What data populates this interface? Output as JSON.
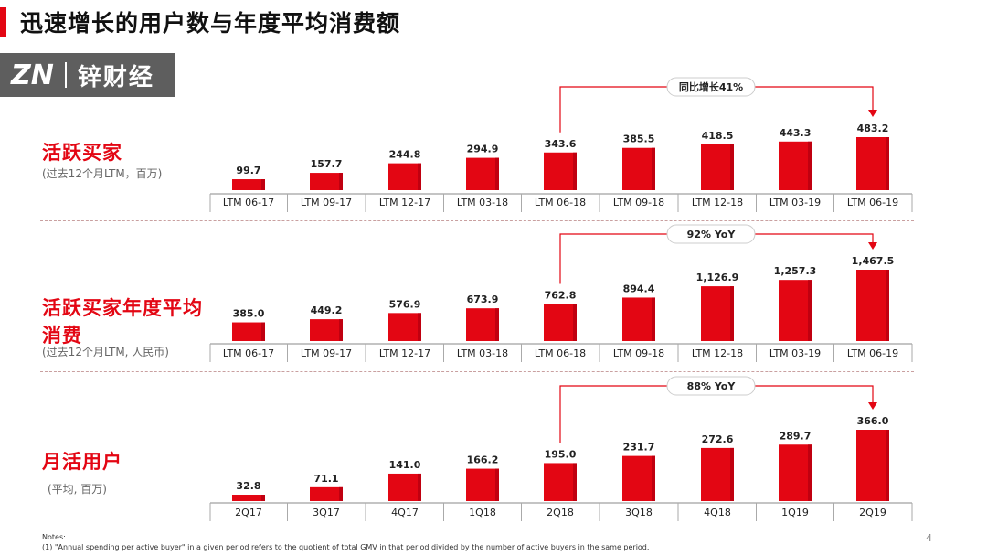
{
  "page_title": "迅速增长的用户数与年度平均消费额",
  "logo": {
    "mark": "ZN",
    "name": "锌财经"
  },
  "sections": [
    {
      "title": "活跃买家",
      "subtitle": "(过去12个月LTM，百万)"
    },
    {
      "title": "活跃买家年度平均消费",
      "subtitle": "(过去12个月LTM, 人民币)"
    },
    {
      "title": "月活用户",
      "subtitle": "(平均, 百万)"
    }
  ],
  "notes": {
    "label": "Notes:",
    "line1": "(1)      \"Annual spending per active buyer\" in a given period refers to the quotient of total GMV in that period divided by the number of active buyers in the same period."
  },
  "page_number": "4",
  "colors": {
    "bar": "#e30613",
    "bar_dark": "#c00010",
    "accent": "#e30613"
  },
  "chart_data": [
    {
      "type": "bar",
      "categories": [
        "LTM 06-17",
        "LTM 09-17",
        "LTM 12-17",
        "LTM 03-18",
        "LTM 06-18",
        "LTM 09-18",
        "LTM 12-18",
        "LTM 03-19",
        "LTM 06-19"
      ],
      "values": [
        99.7,
        157.7,
        244.8,
        294.9,
        343.6,
        385.5,
        418.5,
        443.3,
        483.2
      ],
      "value_labels": [
        "99.7",
        "157.7",
        "244.8",
        "294.9",
        "343.6",
        "385.5",
        "418.5",
        "443.3",
        "483.2"
      ],
      "annotation": {
        "text": "同比增长41%",
        "from_index": 4,
        "to_index": 8
      },
      "ylim": [
        0,
        483.2
      ]
    },
    {
      "type": "bar",
      "categories": [
        "LTM 06-17",
        "LTM 09-17",
        "LTM 12-17",
        "LTM 03-18",
        "LTM 06-18",
        "LTM 09-18",
        "LTM 12-18",
        "LTM 03-19",
        "LTM 06-19"
      ],
      "values": [
        385.0,
        449.2,
        576.9,
        673.9,
        762.8,
        894.4,
        1126.9,
        1257.3,
        1467.5
      ],
      "value_labels": [
        "385.0",
        "449.2",
        "576.9",
        "673.9",
        "762.8",
        "894.4",
        "1,126.9",
        "1,257.3",
        "1,467.5"
      ],
      "annotation": {
        "text": "92% YoY",
        "from_index": 4,
        "to_index": 8
      },
      "ylim": [
        0,
        1467.5
      ]
    },
    {
      "type": "bar",
      "categories": [
        "2Q17",
        "3Q17",
        "4Q17",
        "1Q18",
        "2Q18",
        "3Q18",
        "4Q18",
        "1Q19",
        "2Q19"
      ],
      "values": [
        32.8,
        71.1,
        141.0,
        166.2,
        195.0,
        231.7,
        272.6,
        289.7,
        366.0
      ],
      "value_labels": [
        "32.8",
        "71.1",
        "141.0",
        "166.2",
        "195.0",
        "231.7",
        "272.6",
        "289.7",
        "366.0"
      ],
      "annotation": {
        "text": "88% YoY",
        "from_index": 4,
        "to_index": 8
      },
      "ylim": [
        0,
        366.0
      ]
    }
  ]
}
